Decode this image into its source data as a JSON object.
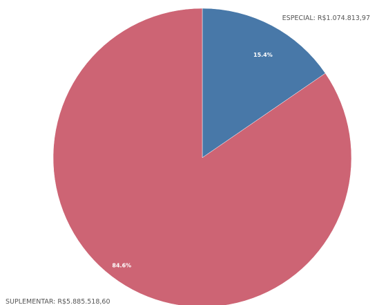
{
  "chart_data": {
    "type": "pie",
    "slices": [
      {
        "label": "ESPECIAL: R$1.074.813,97",
        "value": 1074813.97,
        "percent_label": "15.4%",
        "color": "#4878a8"
      },
      {
        "label": "SUPLEMENTAR: R$5.885.518,60",
        "value": 5885518.6,
        "percent_label": "84.6%",
        "color": "#cd6474"
      }
    ]
  }
}
